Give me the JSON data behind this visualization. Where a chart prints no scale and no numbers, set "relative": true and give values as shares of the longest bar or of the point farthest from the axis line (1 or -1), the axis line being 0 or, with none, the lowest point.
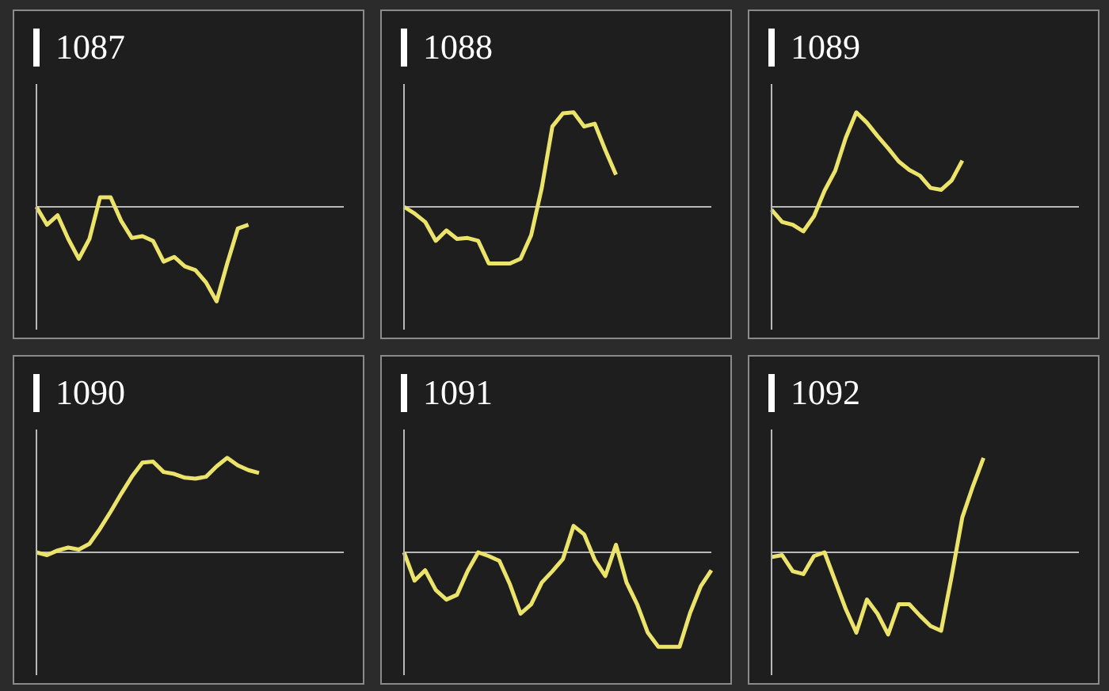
{
  "chart_data": [
    {
      "type": "line",
      "title": "1087",
      "relative": true,
      "categories": [
        null,
        null,
        null,
        null,
        null,
        null,
        null,
        null,
        null,
        null,
        null,
        null,
        null,
        null,
        null,
        null,
        null,
        null,
        null,
        null,
        null,
        null,
        null,
        null,
        null,
        null,
        null,
        null,
        null,
        null
      ],
      "series": [
        {
          "color": "#ece36a",
          "values": [
            0,
            -0.19,
            -0.09,
            -0.34,
            -0.55,
            -0.34,
            0.1,
            0.1,
            -0.15,
            -0.33,
            -0.31,
            -0.36,
            -0.58,
            -0.53,
            -0.63,
            -0.67,
            -0.8,
            -1,
            -0.6,
            -0.23,
            -0.19,
            null,
            null,
            null,
            null,
            null,
            null,
            null,
            null,
            null
          ]
        }
      ]
    },
    {
      "type": "line",
      "title": "1088",
      "relative": true,
      "categories": [
        null,
        null,
        null,
        null,
        null,
        null,
        null,
        null,
        null,
        null,
        null,
        null,
        null,
        null,
        null,
        null,
        null,
        null,
        null,
        null,
        null,
        null,
        null,
        null,
        null,
        null,
        null,
        null,
        null,
        null
      ],
      "series": [
        {
          "color": "#ece36a",
          "values": [
            0,
            -0.07,
            -0.16,
            -0.36,
            -0.25,
            -0.34,
            -0.33,
            -0.36,
            -0.6,
            -0.6,
            -0.6,
            -0.55,
            -0.3,
            0.2,
            0.85,
            0.99,
            1,
            0.85,
            0.88,
            0.6,
            0.34,
            null,
            null,
            null,
            null,
            null,
            null,
            null,
            null,
            null
          ]
        }
      ]
    },
    {
      "type": "line",
      "title": "1089",
      "relative": true,
      "categories": [
        null,
        null,
        null,
        null,
        null,
        null,
        null,
        null,
        null,
        null,
        null,
        null,
        null,
        null,
        null,
        null,
        null,
        null,
        null,
        null,
        null,
        null,
        null,
        null,
        null,
        null,
        null,
        null,
        null,
        null
      ],
      "series": [
        {
          "color": "#ece36a",
          "values": [
            -0.03,
            -0.16,
            -0.19,
            -0.26,
            -0.1,
            0.17,
            0.38,
            0.73,
            1,
            0.89,
            0.75,
            0.62,
            0.48,
            0.39,
            0.33,
            0.2,
            0.18,
            0.28,
            0.49,
            null,
            null,
            null,
            null,
            null,
            null,
            null,
            null,
            null,
            null,
            null
          ]
        }
      ]
    },
    {
      "type": "line",
      "title": "1090",
      "relative": true,
      "categories": [
        null,
        null,
        null,
        null,
        null,
        null,
        null,
        null,
        null,
        null,
        null,
        null,
        null,
        null,
        null,
        null,
        null,
        null,
        null,
        null,
        null,
        null,
        null,
        null,
        null,
        null,
        null,
        null,
        null,
        null
      ],
      "series": [
        {
          "color": "#ece36a",
          "values": [
            0,
            -0.03,
            0.02,
            0.05,
            0.03,
            0.09,
            0.25,
            0.43,
            0.62,
            0.8,
            0.95,
            0.96,
            0.85,
            0.83,
            0.79,
            0.78,
            0.8,
            0.91,
            1,
            0.92,
            0.87,
            0.84,
            null,
            null,
            null,
            null,
            null,
            null,
            null,
            null
          ]
        }
      ]
    },
    {
      "type": "line",
      "title": "1091",
      "relative": true,
      "categories": [
        null,
        null,
        null,
        null,
        null,
        null,
        null,
        null,
        null,
        null,
        null,
        null,
        null,
        null,
        null,
        null,
        null,
        null,
        null,
        null,
        null,
        null,
        null,
        null,
        null,
        null,
        null,
        null,
        null,
        null
      ],
      "series": [
        {
          "color": "#ece36a",
          "values": [
            0,
            -0.3,
            -0.19,
            -0.4,
            -0.5,
            -0.45,
            -0.2,
            0,
            -0.04,
            -0.09,
            -0.34,
            -0.65,
            -0.55,
            -0.32,
            -0.2,
            -0.07,
            0.28,
            0.19,
            -0.08,
            -0.25,
            0.08,
            -0.32,
            -0.55,
            -0.85,
            -1,
            -1,
            -1,
            -0.64,
            -0.36,
            -0.19
          ]
        }
      ]
    },
    {
      "type": "line",
      "title": "1092",
      "relative": true,
      "categories": [
        null,
        null,
        null,
        null,
        null,
        null,
        null,
        null,
        null,
        null,
        null,
        null,
        null,
        null,
        null,
        null,
        null,
        null,
        null,
        null,
        null,
        null,
        null,
        null,
        null,
        null,
        null,
        null,
        null,
        null
      ],
      "series": [
        {
          "color": "#ece36a",
          "values": [
            -0.05,
            -0.03,
            -0.2,
            -0.23,
            -0.04,
            0,
            -0.3,
            -0.6,
            -0.85,
            -0.5,
            -0.65,
            -0.87,
            -0.55,
            -0.55,
            -0.67,
            -0.78,
            -0.83,
            -0.25,
            0.37,
            0.7,
            1,
            null,
            null,
            null,
            null,
            null,
            null,
            null,
            null,
            null
          ]
        }
      ]
    }
  ]
}
